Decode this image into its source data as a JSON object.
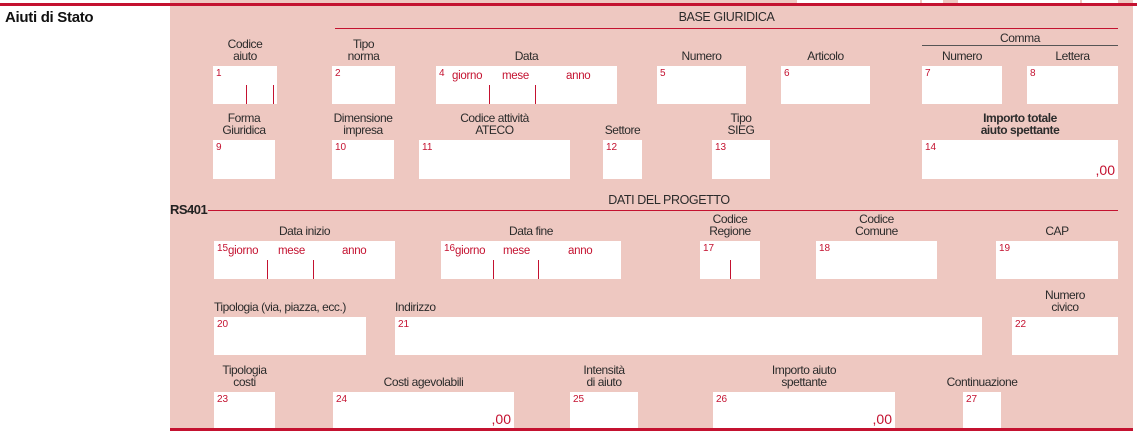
{
  "title": "Aiuti di Stato",
  "row_code": "RS401",
  "sections": {
    "base_giuridica": "BASE GIURIDICA",
    "dati_progetto": "DATI DEL PROGETTO",
    "comma": "Comma"
  },
  "date_parts": {
    "day": "giorno",
    "month": "mese",
    "year": "anno"
  },
  "decimal_suffix": ",00",
  "colors": {
    "accent": "#c41230",
    "panel": "#eec8c1",
    "field": "#ffffff"
  },
  "fields": [
    {
      "n": "1",
      "label": "Codice aiuto"
    },
    {
      "n": "2",
      "label": "Tipo norma"
    },
    {
      "n": "4",
      "label": "Data"
    },
    {
      "n": "5",
      "label": "Numero"
    },
    {
      "n": "6",
      "label": "Articolo"
    },
    {
      "n": "7",
      "label": "Numero"
    },
    {
      "n": "8",
      "label": "Lettera"
    },
    {
      "n": "9",
      "label": "Forma\nGiuridica"
    },
    {
      "n": "10",
      "label": "Dimensione\nimpresa"
    },
    {
      "n": "11",
      "label": "Codice attività ATECO"
    },
    {
      "n": "12",
      "label": "Settore"
    },
    {
      "n": "13",
      "label": "Tipo SIEG"
    },
    {
      "n": "14",
      "label": "Importo totale aiuto spettante"
    },
    {
      "n": "15",
      "label": "Data inizio"
    },
    {
      "n": "16",
      "label": "Data fine"
    },
    {
      "n": "17",
      "label": "Codice Regione"
    },
    {
      "n": "18",
      "label": "Codice Comune"
    },
    {
      "n": "19",
      "label": "CAP"
    },
    {
      "n": "20",
      "label": "Tipologia (via, piazza, ecc.)"
    },
    {
      "n": "21",
      "label": "Indirizzo"
    },
    {
      "n": "22",
      "label": "Numero civico"
    },
    {
      "n": "23",
      "label": "Tipologia costi"
    },
    {
      "n": "24",
      "label": "Costi agevolabili"
    },
    {
      "n": "25",
      "label": "Intensità di aiuto"
    },
    {
      "n": "26",
      "label": "Importo aiuto spettante"
    },
    {
      "n": "27",
      "label": "Continuazione"
    }
  ]
}
